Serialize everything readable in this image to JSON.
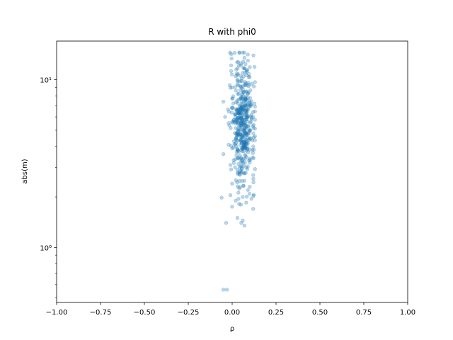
{
  "chart_data": {
    "type": "scatter",
    "title": "R with phi0",
    "xlabel": "ρ",
    "ylabel": "abs(m)",
    "xlim": [
      -1.0,
      1.0
    ],
    "ylim": [
      0.47,
      17.0
    ],
    "yscale": "log",
    "grid": false,
    "legend": "none",
    "x_ticks": [
      -1.0,
      -0.75,
      -0.5,
      -0.25,
      0.0,
      0.25,
      0.5,
      0.75,
      1.0
    ],
    "x_tick_labels": [
      "−1.00",
      "−0.75",
      "−0.50",
      "−0.25",
      "0.00",
      "0.25",
      "0.50",
      "0.75",
      "1.00"
    ],
    "y_ticks": [
      1,
      10
    ],
    "y_tick_labels": [
      "10⁰",
      "10¹"
    ],
    "series": [
      {
        "color": "#1f77b4",
        "opacity": 0.3,
        "summary": {
          "point_count": 500,
          "x_center": 0.06,
          "x_spread": 0.035,
          "x_min": -0.06,
          "x_max": 0.13,
          "y_min": 0.55,
          "y_max": 14.5,
          "y_median": 5.5
        },
        "points": [
          [
            -0.05,
            0.56
          ],
          [
            -0.03,
            0.56
          ],
          [
            0.07,
            1.35
          ],
          [
            0.03,
            1.5
          ],
          [
            0.12,
            1.7
          ],
          [
            0.0,
            1.75
          ],
          [
            0.05,
            1.8
          ],
          [
            0.08,
            1.85
          ],
          [
            0.02,
            1.9
          ],
          [
            0.11,
            1.95
          ],
          [
            -0.01,
            2.05
          ],
          [
            0.06,
            2.0
          ],
          [
            0.09,
            2.2
          ],
          [
            0.04,
            2.25
          ],
          [
            0.1,
            2.3
          ],
          [
            0.0,
            2.4
          ],
          [
            0.07,
            2.5
          ],
          [
            0.12,
            2.7
          ],
          [
            0.03,
            2.9
          ],
          [
            0.08,
            3.0
          ],
          [
            -0.01,
            3.1
          ],
          [
            0.1,
            3.2
          ],
          [
            -0.05,
            3.6
          ],
          [
            0.05,
            3.8
          ],
          [
            0.12,
            4.0
          ],
          [
            0.02,
            4.4
          ],
          [
            0.13,
            4.6
          ],
          [
            0.06,
            5.0
          ],
          [
            0.09,
            5.3
          ],
          [
            0.0,
            5.6
          ],
          [
            0.11,
            5.9
          ],
          [
            -0.04,
            6.0
          ],
          [
            0.04,
            6.3
          ],
          [
            0.08,
            6.6
          ],
          [
            0.1,
            7.0
          ],
          [
            -0.05,
            7.4
          ],
          [
            0.05,
            7.8
          ],
          [
            0.09,
            8.3
          ],
          [
            0.0,
            9.0
          ],
          [
            0.08,
            9.3
          ],
          [
            0.03,
            10.0
          ],
          [
            0.06,
            11.0
          ],
          [
            0.05,
            12.2
          ],
          [
            0.07,
            13.5
          ],
          [
            0.06,
            14.5
          ]
        ]
      }
    ]
  }
}
